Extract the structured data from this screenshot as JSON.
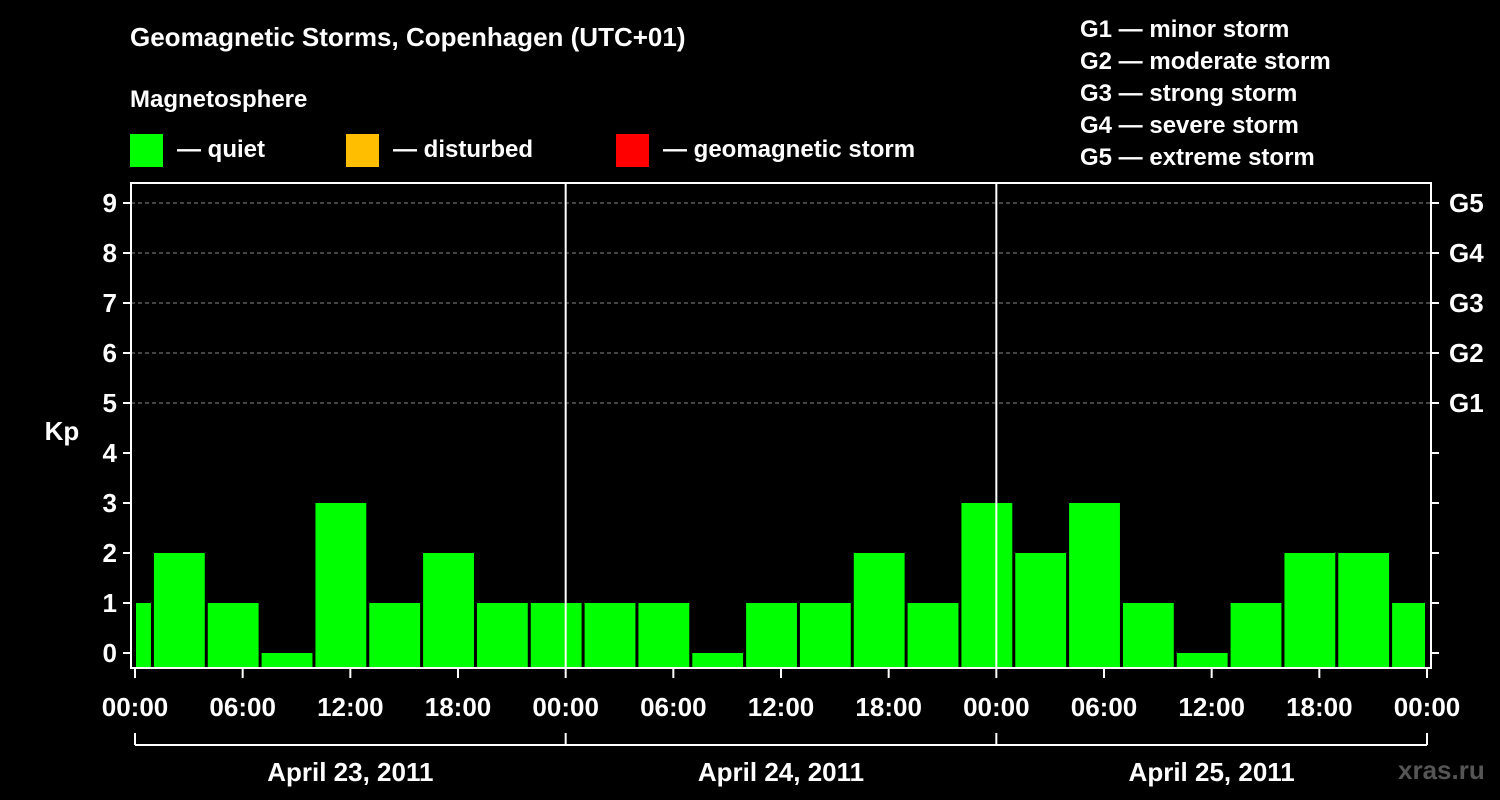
{
  "title": "Geomagnetic Storms, Copenhagen (UTC+01)",
  "magnetosphere": {
    "label": "Magnetosphere",
    "items": [
      {
        "color": "#00ff00",
        "label": "— quiet"
      },
      {
        "color": "#ffbf00",
        "label": "— disturbed"
      },
      {
        "color": "#ff0000",
        "label": "— geomagnetic storm"
      }
    ]
  },
  "storm_scale": [
    "G1 — minor storm",
    "G2 — moderate storm",
    "G3 — strong storm",
    "G4 — severe storm",
    "G5 — extreme storm"
  ],
  "watermark": "xras.ru",
  "chart_data": {
    "type": "bar",
    "ylabel": "Kp",
    "ylim": [
      -0.3,
      9.4
    ],
    "yticks": [
      0,
      1,
      2,
      3,
      4,
      5,
      6,
      7,
      8,
      9
    ],
    "right_axis_labels": [
      {
        "kp": 5,
        "label": "G1"
      },
      {
        "kp": 6,
        "label": "G2"
      },
      {
        "kp": 7,
        "label": "G3"
      },
      {
        "kp": 8,
        "label": "G4"
      },
      {
        "kp": 9,
        "label": "G5"
      }
    ],
    "grid": "horizontal dashed at Kp 5-9",
    "xlim_hours": [
      0,
      72
    ],
    "xtick_labels": [
      "00:00",
      "06:00",
      "12:00",
      "18:00",
      "00:00",
      "06:00",
      "12:00",
      "18:00",
      "00:00",
      "06:00",
      "12:00",
      "18:00",
      "00:00"
    ],
    "days": [
      "April 23, 2011",
      "April 24, 2011",
      "April 25, 2011"
    ],
    "series": [
      {
        "color": "#00ff00",
        "bars": [
          {
            "start": 0,
            "end": 1,
            "kp": 1
          },
          {
            "start": 1,
            "end": 4,
            "kp": 2
          },
          {
            "start": 4,
            "end": 7,
            "kp": 1
          },
          {
            "start": 7,
            "end": 10,
            "kp": 0
          },
          {
            "start": 10,
            "end": 13,
            "kp": 3
          },
          {
            "start": 13,
            "end": 16,
            "kp": 1
          },
          {
            "start": 16,
            "end": 19,
            "kp": 2
          },
          {
            "start": 19,
            "end": 22,
            "kp": 1
          },
          {
            "start": 22,
            "end": 25,
            "kp": 1
          },
          {
            "start": 25,
            "end": 28,
            "kp": 1
          },
          {
            "start": 28,
            "end": 31,
            "kp": 1
          },
          {
            "start": 31,
            "end": 34,
            "kp": 0
          },
          {
            "start": 34,
            "end": 37,
            "kp": 1
          },
          {
            "start": 37,
            "end": 40,
            "kp": 1
          },
          {
            "start": 40,
            "end": 43,
            "kp": 2
          },
          {
            "start": 43,
            "end": 46,
            "kp": 1
          },
          {
            "start": 46,
            "end": 49,
            "kp": 3
          },
          {
            "start": 49,
            "end": 52,
            "kp": 2
          },
          {
            "start": 52,
            "end": 55,
            "kp": 3
          },
          {
            "start": 55,
            "end": 58,
            "kp": 1
          },
          {
            "start": 58,
            "end": 61,
            "kp": 0
          },
          {
            "start": 61,
            "end": 64,
            "kp": 1
          },
          {
            "start": 64,
            "end": 67,
            "kp": 2
          },
          {
            "start": 67,
            "end": 70,
            "kp": 2
          },
          {
            "start": 70,
            "end": 72,
            "kp": 1
          }
        ]
      }
    ]
  }
}
